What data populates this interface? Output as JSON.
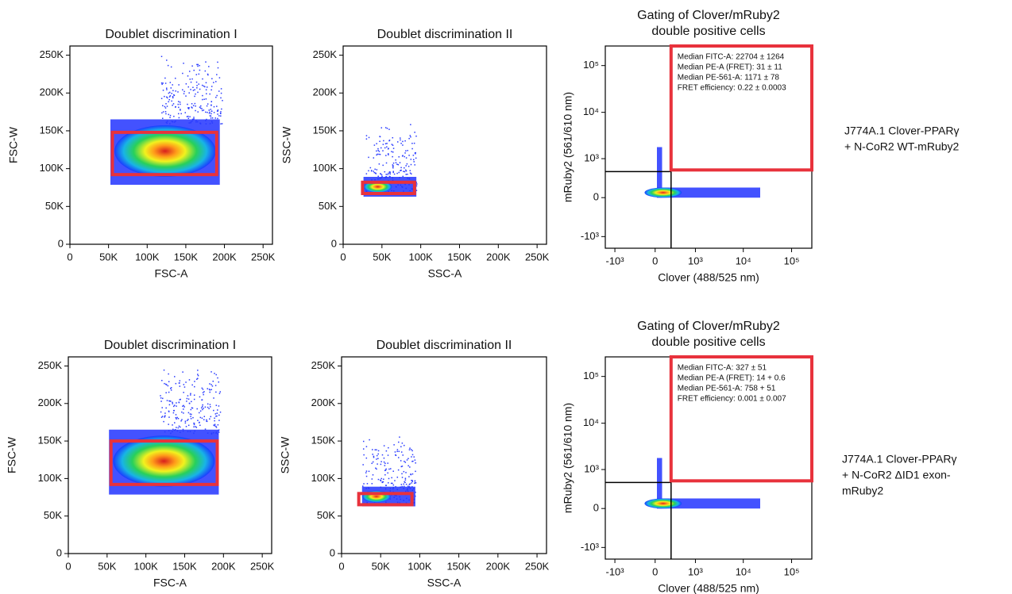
{
  "chart_data": [
    {
      "type": "scatter",
      "title": "Doublet discrimination I",
      "xlabel": "FSC-A",
      "ylabel": "FSC-W",
      "xlim": [
        0,
        262144
      ],
      "ylim": [
        0,
        262144
      ],
      "xticks": [
        0,
        {
          "value": 50000,
          "label": "50K"
        },
        {
          "value": 100000,
          "label": "100K"
        },
        {
          "value": 150000,
          "label": "150K"
        },
        {
          "value": 200000,
          "label": "200K"
        },
        {
          "value": 250000,
          "label": "250K"
        }
      ],
      "yticks": [
        0,
        {
          "value": 50000,
          "label": "50K"
        },
        {
          "value": 100000,
          "label": "100K"
        },
        {
          "value": 150000,
          "label": "150K"
        },
        {
          "value": 200000,
          "label": "200K"
        },
        {
          "value": 250000,
          "label": "250K"
        }
      ],
      "gate": {
        "x": [
          55000,
          190000
        ],
        "y": [
          90000,
          148000
        ]
      },
      "gate_color": "#e8323c"
    },
    {
      "type": "scatter",
      "title": "Doublet discrimination II",
      "xlabel": "SSC-A",
      "ylabel": "SSC-W",
      "xlim": [
        0,
        262144
      ],
      "ylim": [
        0,
        262144
      ],
      "xticks": [
        0,
        {
          "value": 50000,
          "label": "50K"
        },
        {
          "value": 100000,
          "label": "100K"
        },
        {
          "value": 150000,
          "label": "150K"
        },
        {
          "value": 200000,
          "label": "200K"
        },
        {
          "value": 250000,
          "label": "250K"
        }
      ],
      "yticks": [
        0,
        {
          "value": 50000,
          "label": "50K"
        },
        {
          "value": 100000,
          "label": "100K"
        },
        {
          "value": 150000,
          "label": "150K"
        },
        {
          "value": 200000,
          "label": "200K"
        },
        {
          "value": 250000,
          "label": "250K"
        }
      ],
      "gate": {
        "x": [
          25000,
          92000
        ],
        "y": [
          65000,
          82000
        ]
      },
      "gate_color": "#e8323c"
    },
    {
      "type": "scatter",
      "title": [
        "Gating of Clover/mRuby2",
        "double positive cells"
      ],
      "xlabel": "Clover (488/525 nm)",
      "ylabel": "mRuby2 (561/610 nm)",
      "xscale": "biexponential",
      "yscale": "biexponential",
      "xlim": [
        -1600,
        262144
      ],
      "ylim": [
        -1800,
        262144
      ],
      "xticks": [
        {
          "value": -1000,
          "label": "-10³"
        },
        0,
        {
          "value": 1000,
          "label": "10³"
        },
        {
          "value": 10000,
          "label": "10⁴"
        },
        {
          "value": 100000,
          "label": "10⁵"
        }
      ],
      "yticks": [
        {
          "value": -1000,
          "label": "-10³"
        },
        0,
        {
          "value": 1000,
          "label": "10³"
        },
        {
          "value": 10000,
          "label": "10⁴"
        },
        {
          "value": 100000,
          "label": "10⁵"
        }
      ],
      "annotations": [
        "Median FITC-A: 22704 ± 1264",
        "Median PE-A (FRET): 31 ± 11",
        "Median PE-561-A: 1171 ± 78",
        "FRET efficiency: 0.22 ± 0.0003"
      ],
      "gate": {
        "x": [
          250,
          262144
        ],
        "y": [
          500,
          262144
        ]
      },
      "gate_color": "#e8323c"
    },
    {
      "type": "scatter",
      "title": "Doublet discrimination I",
      "xlabel": "FSC-A",
      "ylabel": "FSC-W",
      "xlim": [
        0,
        262144
      ],
      "ylim": [
        0,
        262144
      ],
      "xticks": [
        0,
        {
          "value": 50000,
          "label": "50K"
        },
        {
          "value": 100000,
          "label": "100K"
        },
        {
          "value": 150000,
          "label": "150K"
        },
        {
          "value": 200000,
          "label": "200K"
        },
        {
          "value": 250000,
          "label": "250K"
        }
      ],
      "yticks": [
        0,
        {
          "value": 50000,
          "label": "50K"
        },
        {
          "value": 100000,
          "label": "100K"
        },
        {
          "value": 150000,
          "label": "150K"
        },
        {
          "value": 200000,
          "label": "200K"
        },
        {
          "value": 250000,
          "label": "250K"
        }
      ],
      "gate": {
        "x": [
          55000,
          192000
        ],
        "y": [
          90000,
          150000
        ]
      },
      "gate_color": "#e8323c"
    },
    {
      "type": "scatter",
      "title": "Doublet discrimination II",
      "xlabel": "SSC-A",
      "ylabel": "SSC-W",
      "xlim": [
        0,
        262144
      ],
      "ylim": [
        0,
        262144
      ],
      "xticks": [
        0,
        {
          "value": 50000,
          "label": "50K"
        },
        {
          "value": 100000,
          "label": "100K"
        },
        {
          "value": 150000,
          "label": "150K"
        },
        {
          "value": 200000,
          "label": "200K"
        },
        {
          "value": 250000,
          "label": "250K"
        }
      ],
      "yticks": [
        0,
        {
          "value": 50000,
          "label": "50K"
        },
        {
          "value": 100000,
          "label": "100K"
        },
        {
          "value": 150000,
          "label": "150K"
        },
        {
          "value": 200000,
          "label": "200K"
        },
        {
          "value": 250000,
          "label": "250K"
        }
      ],
      "gate": {
        "x": [
          22000,
          90000
        ],
        "y": [
          63000,
          80000
        ]
      },
      "gate_color": "#e8323c"
    },
    {
      "type": "scatter",
      "title": [
        "Gating of Clover/mRuby2",
        "double positive cells"
      ],
      "xlabel": "Clover (488/525 nm)",
      "ylabel": "mRuby2 (561/610 nm)",
      "xscale": "biexponential",
      "yscale": "biexponential",
      "xlim": [
        -1600,
        262144
      ],
      "ylim": [
        -1800,
        262144
      ],
      "xticks": [
        {
          "value": -1000,
          "label": "-10³"
        },
        0,
        {
          "value": 1000,
          "label": "10³"
        },
        {
          "value": 10000,
          "label": "10⁴"
        },
        {
          "value": 100000,
          "label": "10⁵"
        }
      ],
      "yticks": [
        {
          "value": -1000,
          "label": "-10³"
        },
        0,
        {
          "value": 1000,
          "label": "10³"
        },
        {
          "value": 10000,
          "label": "10⁴"
        },
        {
          "value": 100000,
          "label": "10⁵"
        }
      ],
      "annotations": [
        "Median FITC-A: 327 ± 51",
        "Median PE-A (FRET): 14 + 0.6",
        "Median PE-561-A: 758 + 51",
        "FRET efficiency: 0.001 ± 0.007"
      ],
      "gate": {
        "x": [
          250,
          262144
        ],
        "y": [
          500,
          262144
        ]
      },
      "gate_color": "#e8323c"
    }
  ],
  "row_labels": [
    [
      "J774A.1 Clover-PPARγ",
      "+ N-CoR2 WT-mRuby2"
    ],
    [
      "J774A.1 Clover-PPARγ",
      "+ N-CoR2 ΔID1 exon-",
      "mRuby2"
    ]
  ]
}
